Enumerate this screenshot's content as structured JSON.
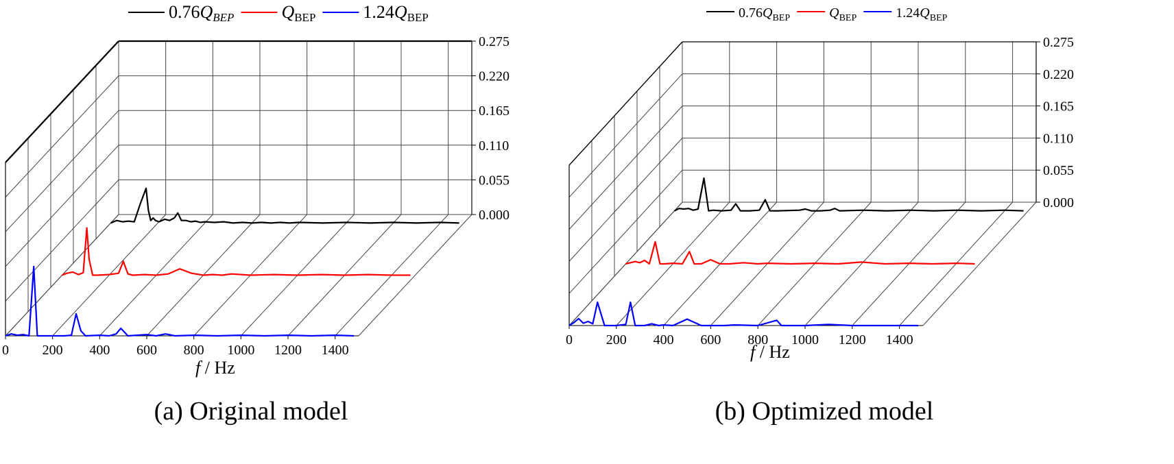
{
  "chart_data": [
    {
      "type": "line",
      "panel": "a",
      "caption": "(a) Original model",
      "xlabel_var": "f",
      "xlabel_unit": " / Hz",
      "x_ticks": [
        "0",
        "200",
        "400",
        "600",
        "800",
        "1000",
        "1200",
        "1400"
      ],
      "z_ticks": [
        "0.000",
        "0.055",
        "0.110",
        "0.165",
        "0.220",
        "0.275"
      ],
      "xlim": [
        0,
        1500
      ],
      "zlim": [
        0,
        0.275
      ],
      "legend": [
        {
          "coef": "0.76",
          "sym": "Q",
          "sub": "BEP",
          "sub_italic": true,
          "color": "#000000"
        },
        {
          "coef": "",
          "sym": "Q",
          "sub": "BEP",
          "sub_italic": false,
          "color": "#ff0000"
        },
        {
          "coef": "1.24",
          "sym": "Q",
          "sub": "BEP",
          "sub_italic": false,
          "color": "#0000ff"
        }
      ],
      "series": [
        {
          "name": "0.76Q_BEP",
          "color": "#000000",
          "x": [
            0,
            25,
            50,
            75,
            100,
            125,
            150,
            160,
            170,
            180,
            190,
            205,
            230,
            250,
            270,
            285,
            300,
            320,
            340,
            360,
            380,
            400,
            440,
            480,
            520,
            560,
            600,
            640,
            680,
            720,
            760,
            800,
            900,
            1000,
            1100,
            1200,
            1300,
            1400,
            1480
          ],
          "z": [
            0,
            0.004,
            0.002,
            0.003,
            0.002,
            0.03,
            0.055,
            0.02,
            0.004,
            0.008,
            0.004,
            0.002,
            0.006,
            0.004,
            0.008,
            0.016,
            0.004,
            0.004,
            0.002,
            0.003,
            0.001,
            0.002,
            0.001,
            0.002,
            0,
            0.001,
            0,
            0.001,
            0,
            0.001,
            0,
            0.001,
            0,
            0.001,
            0,
            0.001,
            0,
            0.001,
            0
          ]
        },
        {
          "name": "Q_BEP",
          "color": "#ff0000",
          "x": [
            0,
            20,
            45,
            70,
            90,
            105,
            115,
            130,
            150,
            200,
            240,
            260,
            280,
            300,
            350,
            400,
            450,
            500,
            550,
            600,
            640,
            680,
            720,
            800,
            900,
            1000,
            1100,
            1200,
            1300,
            1400,
            1480
          ],
          "z": [
            0,
            0.003,
            0.005,
            0.001,
            0.004,
            0.075,
            0.025,
            0,
            0,
            0.001,
            0.003,
            0.022,
            0.002,
            0,
            0.001,
            0,
            0.002,
            0.01,
            0.003,
            0,
            0.001,
            0,
            0.002,
            0,
            0.001,
            0,
            0.001,
            0,
            0.001,
            0,
            0
          ]
        },
        {
          "name": "1.24Q_BEP",
          "color": "#0000ff",
          "x": [
            0,
            25,
            50,
            75,
            100,
            120,
            135,
            150,
            200,
            250,
            280,
            300,
            320,
            340,
            400,
            440,
            470,
            490,
            520,
            600,
            640,
            680,
            720,
            800,
            900,
            1000,
            1100,
            1200,
            1300,
            1400,
            1480
          ],
          "z": [
            0,
            0.003,
            0.001,
            0.002,
            0,
            0.11,
            0,
            0,
            0,
            0,
            0.001,
            0.035,
            0.008,
            0,
            0.001,
            0,
            0.003,
            0.012,
            0,
            0.002,
            0,
            0.003,
            0,
            0.001,
            0,
            0.001,
            0,
            0.001,
            0,
            0.001,
            0
          ]
        }
      ]
    },
    {
      "type": "line",
      "panel": "b",
      "caption": "(b) Optimized model",
      "xlabel_var": "f",
      "xlabel_unit": " / Hz",
      "x_ticks": [
        "0",
        "200",
        "400",
        "600",
        "800",
        "1000",
        "1200",
        "1400"
      ],
      "z_ticks": [
        "0.000",
        "0.055",
        "0.110",
        "0.165",
        "0.220",
        "0.275"
      ],
      "xlim": [
        0,
        1500
      ],
      "zlim": [
        0,
        0.275
      ],
      "legend": [
        {
          "coef": "0.76",
          "sym": "Q",
          "sub": "BEP",
          "sub_italic": false,
          "color": "#000000"
        },
        {
          "coef": "",
          "sym": "Q",
          "sub": "BEP",
          "sub_italic": false,
          "color": "#ff0000"
        },
        {
          "coef": "1.24",
          "sym": "Q",
          "sub": "BEP",
          "sub_italic": false,
          "color": "#0000ff"
        }
      ],
      "series": [
        {
          "name": "0.76Q_BEP",
          "color": "#000000",
          "x": [
            0,
            20,
            40,
            60,
            80,
            100,
            125,
            145,
            165,
            200,
            240,
            260,
            280,
            320,
            360,
            385,
            405,
            440,
            530,
            555,
            580,
            620,
            660,
            680,
            700,
            800,
            900,
            1000,
            1100,
            1200,
            1300,
            1400,
            1480
          ],
          "z": [
            0,
            0.004,
            0.003,
            0.004,
            0.001,
            0.003,
            0.056,
            0,
            0.001,
            0,
            0.001,
            0.012,
            0,
            0,
            0.001,
            0.019,
            0,
            0,
            0.001,
            0.003,
            0,
            0,
            0.001,
            0.004,
            0,
            0.001,
            0,
            0.001,
            0,
            0.001,
            0,
            0.001,
            0
          ]
        },
        {
          "name": "Q_BEP",
          "color": "#ff0000",
          "x": [
            0,
            20,
            40,
            60,
            80,
            100,
            125,
            145,
            165,
            200,
            240,
            270,
            290,
            320,
            360,
            400,
            440,
            500,
            560,
            600,
            700,
            800,
            900,
            1000,
            1100,
            1200,
            1300,
            1400,
            1480
          ],
          "z": [
            0,
            0.002,
            0.004,
            0.002,
            0.006,
            0,
            0.038,
            0,
            0,
            0.001,
            0,
            0.021,
            0,
            0,
            0.007,
            0,
            0,
            0.002,
            0,
            0.001,
            0,
            0.001,
            0,
            0.003,
            0,
            0.001,
            0,
            0.001,
            0
          ]
        },
        {
          "name": "1.24Q_BEP",
          "color": "#0000ff",
          "x": [
            0,
            20,
            40,
            60,
            80,
            100,
            120,
            150,
            200,
            240,
            260,
            280,
            320,
            350,
            380,
            400,
            440,
            500,
            560,
            600,
            630,
            660,
            700,
            800,
            880,
            900,
            920,
            1000,
            1100,
            1200,
            1300,
            1400,
            1480
          ],
          "z": [
            0,
            0.005,
            0.012,
            0.004,
            0.007,
            0.003,
            0.04,
            0,
            0,
            0.002,
            0.04,
            0,
            0,
            0.003,
            0,
            0.001,
            0,
            0.011,
            0,
            0,
            0,
            0,
            0.001,
            0,
            0.009,
            0,
            0,
            0,
            0.002,
            0,
            0,
            0,
            0
          ]
        }
      ]
    }
  ]
}
